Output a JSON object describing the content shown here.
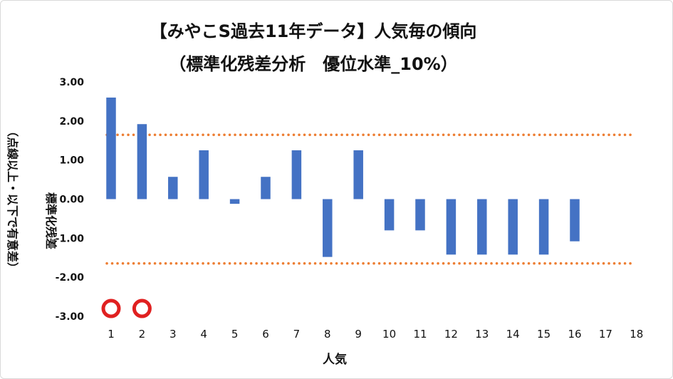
{
  "chart_data": {
    "type": "bar",
    "title": "【みやこS過去11年データ】人気毎の傾向",
    "subtitle": "（標準化残差分析　優位水準_10%）",
    "xlabel": "人気",
    "ylabel": "標準化残差",
    "ylabel2": "（点線以上・以下で有意差）",
    "categories": [
      "1",
      "2",
      "3",
      "4",
      "5",
      "6",
      "7",
      "8",
      "9",
      "10",
      "11",
      "12",
      "13",
      "14",
      "15",
      "16",
      "17",
      "18"
    ],
    "values": [
      2.6,
      1.92,
      0.57,
      1.25,
      -0.12,
      0.57,
      1.25,
      -1.48,
      1.25,
      -0.8,
      -0.8,
      -1.42,
      -1.42,
      -1.42,
      -1.42,
      -1.08,
      null,
      null
    ],
    "ylim": [
      -3.0,
      3.0
    ],
    "yticks": [
      "3.00",
      "2.00",
      "1.00",
      "0.00",
      "-1.00",
      "-2.00",
      "-3.00"
    ],
    "threshold_upper": 1.645,
    "threshold_lower": -1.645,
    "markers": [
      {
        "category": "1",
        "y": -2.8,
        "symbol": "circle"
      },
      {
        "category": "2",
        "y": -2.8,
        "symbol": "circle"
      }
    ],
    "bar_color": "#4472c4",
    "threshold_color": "#ed7d31",
    "marker_color": "#e02020",
    "grid": false,
    "legend": "none"
  }
}
